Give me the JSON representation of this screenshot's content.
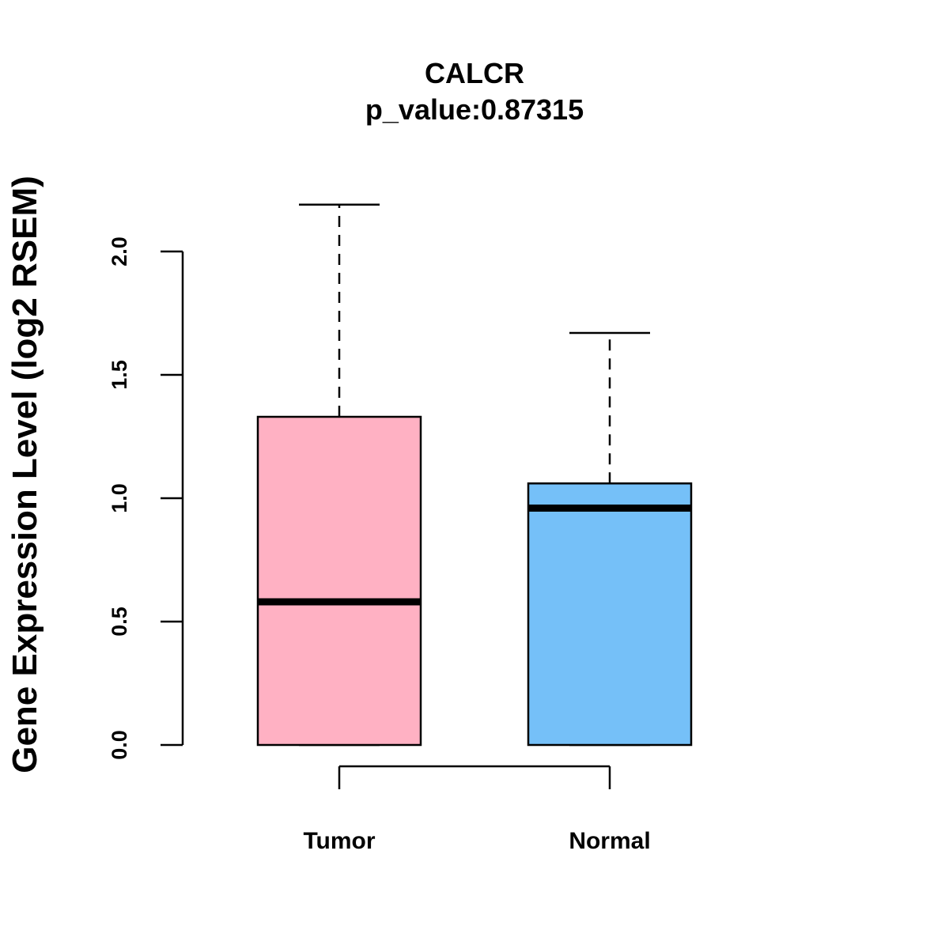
{
  "chart_data": {
    "type": "box",
    "title": "CALCR",
    "subtitle": "p_value:0.87315",
    "ylabel": "Gene Expression Level (log2 RSEM)",
    "xlabel": "",
    "ylim": [
      0,
      2.0
    ],
    "yticks": [
      {
        "value": 0.0,
        "label": "0.0"
      },
      {
        "value": 0.5,
        "label": "0.5"
      },
      {
        "value": 1.0,
        "label": "1.0"
      },
      {
        "value": 1.5,
        "label": "1.5"
      },
      {
        "value": 2.0,
        "label": "2.0"
      }
    ],
    "grid": false,
    "legend": "none",
    "categories": [
      "Tumor",
      "Normal"
    ],
    "boxes": [
      {
        "category": "Tumor",
        "min": 0.0,
        "q1": 0.0,
        "median": 0.58,
        "q3": 1.33,
        "max": 2.19,
        "color": "#FFB1C3"
      },
      {
        "category": "Normal",
        "min": 0.0,
        "q1": 0.0,
        "median": 0.96,
        "q3": 1.06,
        "max": 1.67,
        "color": "#75C0F8"
      }
    ],
    "comparison_bracket": {
      "from": "Tumor",
      "to": "Normal"
    }
  }
}
